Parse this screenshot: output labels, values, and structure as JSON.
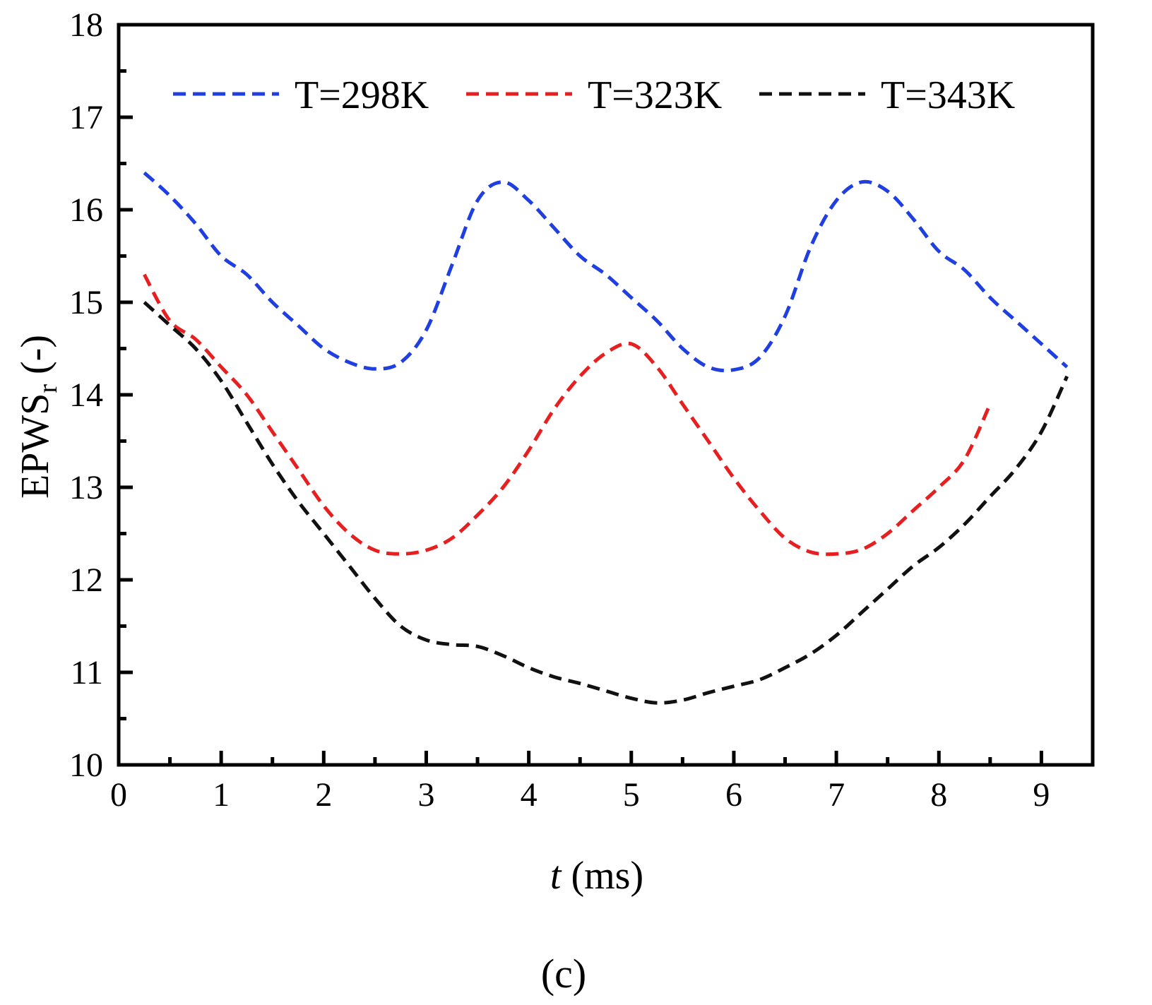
{
  "chart_data": {
    "type": "line",
    "title": "",
    "xlabel_italic": "t",
    "xlabel_rest": " (ms)",
    "ylabel_main": "EPWS",
    "ylabel_sub": "r",
    "ylabel_rest": " (-)",
    "xlim": [
      0,
      9.5
    ],
    "ylim": [
      10,
      18
    ],
    "xticks": [
      0,
      1,
      2,
      3,
      4,
      5,
      6,
      7,
      8,
      9
    ],
    "yticks": [
      10,
      11,
      12,
      13,
      14,
      15,
      16,
      17,
      18
    ],
    "x_minor_step": 0.5,
    "y_minor_step": 0.5,
    "grid": false,
    "legend_position": "top",
    "caption": "(c)",
    "series": [
      {
        "name": "T=298K",
        "color": "#1f3fe0",
        "x": [
          0.25,
          0.5,
          0.75,
          1.0,
          1.25,
          1.5,
          1.75,
          2.0,
          2.25,
          2.5,
          2.75,
          3.0,
          3.25,
          3.5,
          3.75,
          4.0,
          4.25,
          4.5,
          4.75,
          5.0,
          5.25,
          5.5,
          5.75,
          6.0,
          6.25,
          6.5,
          6.75,
          7.0,
          7.25,
          7.5,
          7.75,
          8.0,
          8.25,
          8.5,
          8.75,
          9.0,
          9.25
        ],
        "y": [
          16.4,
          16.15,
          15.85,
          15.5,
          15.3,
          15.0,
          14.75,
          14.5,
          14.35,
          14.28,
          14.35,
          14.7,
          15.4,
          16.1,
          16.3,
          16.1,
          15.8,
          15.5,
          15.3,
          15.05,
          14.8,
          14.5,
          14.3,
          14.27,
          14.4,
          14.85,
          15.6,
          16.1,
          16.3,
          16.2,
          15.9,
          15.55,
          15.35,
          15.05,
          14.8,
          14.55,
          14.3
        ]
      },
      {
        "name": "T=323K",
        "color": "#e62020",
        "x": [
          0.25,
          0.5,
          0.75,
          1.0,
          1.25,
          1.5,
          1.75,
          2.0,
          2.25,
          2.5,
          2.75,
          3.0,
          3.25,
          3.5,
          3.75,
          4.0,
          4.25,
          4.5,
          4.75,
          5.0,
          5.25,
          5.5,
          5.75,
          6.0,
          6.25,
          6.5,
          6.75,
          7.0,
          7.25,
          7.5,
          7.75,
          8.0,
          8.25,
          8.5
        ],
        "y": [
          15.3,
          14.8,
          14.6,
          14.3,
          14.0,
          13.6,
          13.2,
          12.8,
          12.5,
          12.32,
          12.28,
          12.32,
          12.45,
          12.7,
          13.0,
          13.4,
          13.85,
          14.2,
          14.45,
          14.55,
          14.3,
          13.9,
          13.5,
          13.1,
          12.75,
          12.45,
          12.3,
          12.28,
          12.33,
          12.5,
          12.75,
          13.0,
          13.3,
          13.9
        ]
      },
      {
        "name": "T=343K",
        "color": "#111111",
        "x": [
          0.25,
          0.5,
          0.75,
          1.0,
          1.25,
          1.5,
          1.75,
          2.0,
          2.25,
          2.5,
          2.75,
          3.0,
          3.25,
          3.5,
          3.75,
          4.0,
          4.25,
          4.5,
          4.75,
          5.0,
          5.25,
          5.5,
          5.75,
          6.0,
          6.25,
          6.5,
          6.75,
          7.0,
          7.25,
          7.5,
          7.75,
          8.0,
          8.25,
          8.5,
          8.75,
          9.0,
          9.25
        ],
        "y": [
          15.0,
          14.75,
          14.5,
          14.15,
          13.7,
          13.25,
          12.85,
          12.5,
          12.15,
          11.8,
          11.5,
          11.35,
          11.3,
          11.28,
          11.18,
          11.05,
          10.95,
          10.88,
          10.8,
          10.72,
          10.67,
          10.7,
          10.78,
          10.85,
          10.92,
          11.05,
          11.2,
          11.4,
          11.65,
          11.9,
          12.15,
          12.35,
          12.6,
          12.9,
          13.2,
          13.6,
          14.2
        ]
      }
    ]
  }
}
